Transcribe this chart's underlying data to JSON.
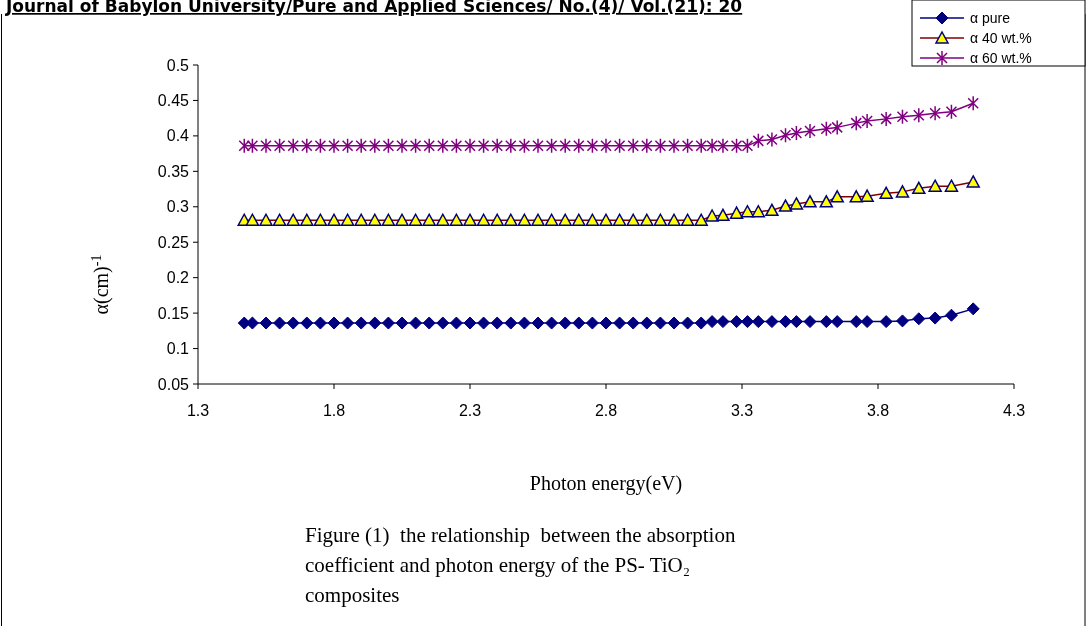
{
  "chart_data": {
    "type": "line",
    "xlabel": "Photon energy(eV)",
    "ylabel": "α(cm)$^{-1}$",
    "annotations": [
      "Journal of Babylon University/Pure and Applied Sciences/ No.(4)/ Vol.(21): 20",
      "Figure (1)  the relationship  between the absorption coefficient and photon energy of the PS- TiO₂ composites"
    ],
    "x": [
      1.47,
      1.5,
      1.55,
      1.6,
      1.65,
      1.7,
      1.75,
      1.8,
      1.85,
      1.9,
      1.95,
      2,
      2.05,
      2.1,
      2.15,
      2.2,
      2.25,
      2.3,
      2.35,
      2.4,
      2.45,
      2.5,
      2.55,
      2.6,
      2.65,
      2.7,
      2.75,
      2.8,
      2.85,
      2.9,
      2.95,
      3,
      3.05,
      3.1,
      3.15,
      3.19,
      3.23,
      3.28,
      3.32,
      3.36,
      3.41,
      3.46,
      3.5,
      3.55,
      3.61,
      3.65,
      3.72,
      3.76,
      3.83,
      3.89,
      3.95,
      4.01,
      4.07,
      4.15
    ],
    "series": [
      {
        "name": "α pure",
        "color": "#000080",
        "marker": "diamond",
        "values": [
          0.136,
          0.136,
          0.136,
          0.136,
          0.136,
          0.136,
          0.136,
          0.136,
          0.136,
          0.136,
          0.136,
          0.136,
          0.136,
          0.136,
          0.136,
          0.136,
          0.136,
          0.136,
          0.136,
          0.136,
          0.136,
          0.136,
          0.136,
          0.136,
          0.136,
          0.136,
          0.136,
          0.136,
          0.136,
          0.136,
          0.136,
          0.136,
          0.136,
          0.136,
          0.136,
          0.138,
          0.138,
          0.138,
          0.138,
          0.138,
          0.138,
          0.138,
          0.138,
          0.138,
          0.138,
          0.138,
          0.138,
          0.138,
          0.138,
          0.139,
          0.142,
          0.143,
          0.147,
          0.156
        ]
      },
      {
        "name": "α 40 wt.%",
        "color": "#800000",
        "marker": "triangle",
        "values": [
          0.281,
          0.281,
          0.281,
          0.281,
          0.281,
          0.281,
          0.281,
          0.281,
          0.281,
          0.281,
          0.281,
          0.281,
          0.281,
          0.281,
          0.281,
          0.281,
          0.281,
          0.281,
          0.281,
          0.281,
          0.281,
          0.281,
          0.281,
          0.281,
          0.281,
          0.281,
          0.281,
          0.281,
          0.281,
          0.281,
          0.281,
          0.281,
          0.281,
          0.281,
          0.281,
          0.287,
          0.288,
          0.291,
          0.293,
          0.293,
          0.295,
          0.301,
          0.304,
          0.307,
          0.307,
          0.314,
          0.314,
          0.315,
          0.319,
          0.321,
          0.326,
          0.329,
          0.329,
          0.335
        ]
      },
      {
        "name": "α 60 wt.%",
        "color": "#800080",
        "marker": "cross",
        "values": [
          0.386,
          0.386,
          0.386,
          0.386,
          0.386,
          0.386,
          0.386,
          0.386,
          0.386,
          0.386,
          0.386,
          0.386,
          0.386,
          0.386,
          0.386,
          0.386,
          0.386,
          0.386,
          0.386,
          0.386,
          0.386,
          0.386,
          0.386,
          0.386,
          0.386,
          0.386,
          0.386,
          0.386,
          0.386,
          0.386,
          0.386,
          0.386,
          0.386,
          0.386,
          0.386,
          0.386,
          0.386,
          0.386,
          0.386,
          0.393,
          0.395,
          0.401,
          0.404,
          0.407,
          0.41,
          0.412,
          0.418,
          0.421,
          0.424,
          0.427,
          0.429,
          0.432,
          0.434,
          0.446
        ]
      }
    ],
    "xlim": [
      1.3,
      4.3
    ],
    "xticks": [
      1.3,
      1.8,
      2.3,
      2.8,
      3.3,
      3.8,
      4.3
    ],
    "ylim": [
      0.05,
      0.5
    ],
    "yticks": [
      0.05,
      0.1,
      0.15,
      0.2,
      0.25,
      0.3,
      0.35,
      0.4,
      0.45,
      0.5
    ],
    "grid": false,
    "legend": "top right",
    "line_style": "solid"
  }
}
